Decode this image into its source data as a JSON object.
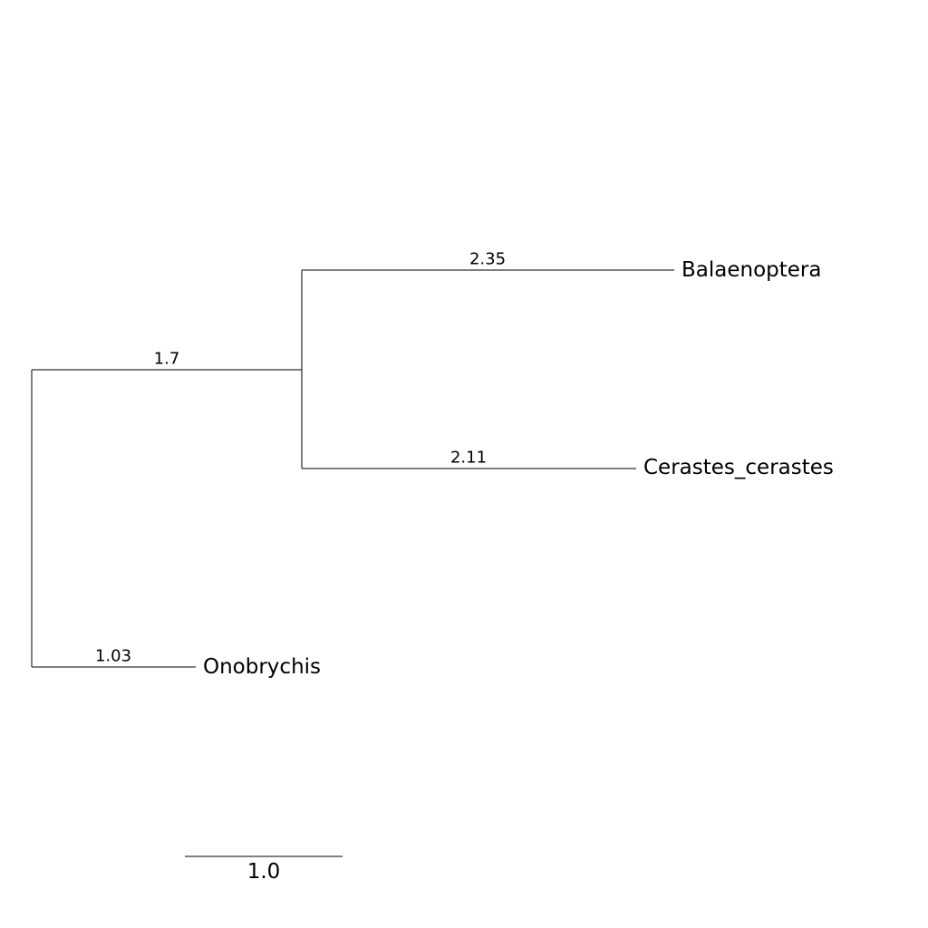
{
  "tree": {
    "leaves": [
      {
        "name": "Balaenoptera",
        "branch_length": "2.35"
      },
      {
        "name": "Cerastes_cerastes",
        "branch_length": "2.11"
      },
      {
        "name": "Onobrychis",
        "branch_length": "1.03"
      }
    ],
    "internal": [
      {
        "branch_length": "1.7"
      }
    ]
  },
  "scale_bar": {
    "label": "1.0"
  }
}
